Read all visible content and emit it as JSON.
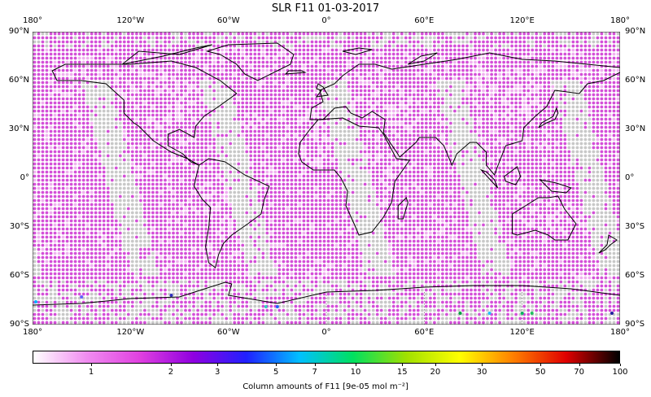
{
  "title": "SLR F11 01-03-2017",
  "map": {
    "lon_labels": [
      "180°",
      "120°W",
      "60°W",
      "0°",
      "60°E",
      "120°E",
      "180°"
    ],
    "lon_values": [
      -180,
      -120,
      -60,
      0,
      60,
      120,
      180
    ],
    "lat_labels": [
      "90°N",
      "60°N",
      "30°N",
      "0°",
      "30°S",
      "60°S",
      "90°S"
    ],
    "lat_values": [
      90,
      60,
      30,
      0,
      -30,
      -60,
      -90
    ],
    "dot_color_main": "#d44fd8",
    "dot_color_light": "#f0b0f0",
    "dot_color_missing": "#c8c8c8",
    "coastline_color": "#000000"
  },
  "colorbar": {
    "label": "Column amounts of F11 [9e-05 mol m$^{-2}$]",
    "label_display": "Column amounts of F11 [9e-05 mol m⁻²]",
    "ticks": [
      "1",
      "2",
      "3",
      "5",
      "7",
      "10",
      "15",
      "20",
      "30",
      "50",
      "70",
      "100"
    ],
    "tick_values": [
      1,
      2,
      3,
      5,
      7,
      10,
      15,
      20,
      30,
      50,
      70,
      100
    ],
    "range": [
      0.6,
      100
    ],
    "scale": "log",
    "colormap": [
      "#ffffff",
      "#f08cf0",
      "#e040e0",
      "#9000e0",
      "#2020ff",
      "#00c0ff",
      "#00e060",
      "#a0e000",
      "#ffff00",
      "#ff8000",
      "#e00000",
      "#000000"
    ]
  }
}
